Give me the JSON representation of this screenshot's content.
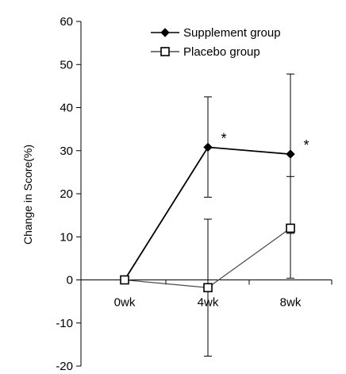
{
  "chart_data": {
    "type": "line",
    "ylabel": "Change in Score(%)",
    "categories": [
      "0wk",
      "4wk",
      "8wk"
    ],
    "ylim": [
      -20,
      60
    ],
    "yticks": [
      -20,
      -10,
      0,
      10,
      20,
      30,
      40,
      50,
      60
    ],
    "grid": false,
    "legend_position": "top-right",
    "series": [
      {
        "name": "Supplement group",
        "marker": "filled-diamond",
        "color": "#000000",
        "values": [
          0,
          30.8,
          29.2
        ],
        "error_low": [
          0,
          19.2,
          0.4
        ],
        "error_high": [
          0,
          42.5,
          47.8
        ],
        "significance": [
          "",
          "*",
          "*"
        ]
      },
      {
        "name": "Placebo group",
        "marker": "open-square",
        "color": "#4a4a4a",
        "values": [
          0,
          -1.8,
          12.0
        ],
        "error_low": [
          0,
          -17.7,
          10.8
        ],
        "error_high": [
          0,
          14.1,
          24.0
        ],
        "significance": [
          "",
          "",
          ""
        ]
      }
    ]
  }
}
